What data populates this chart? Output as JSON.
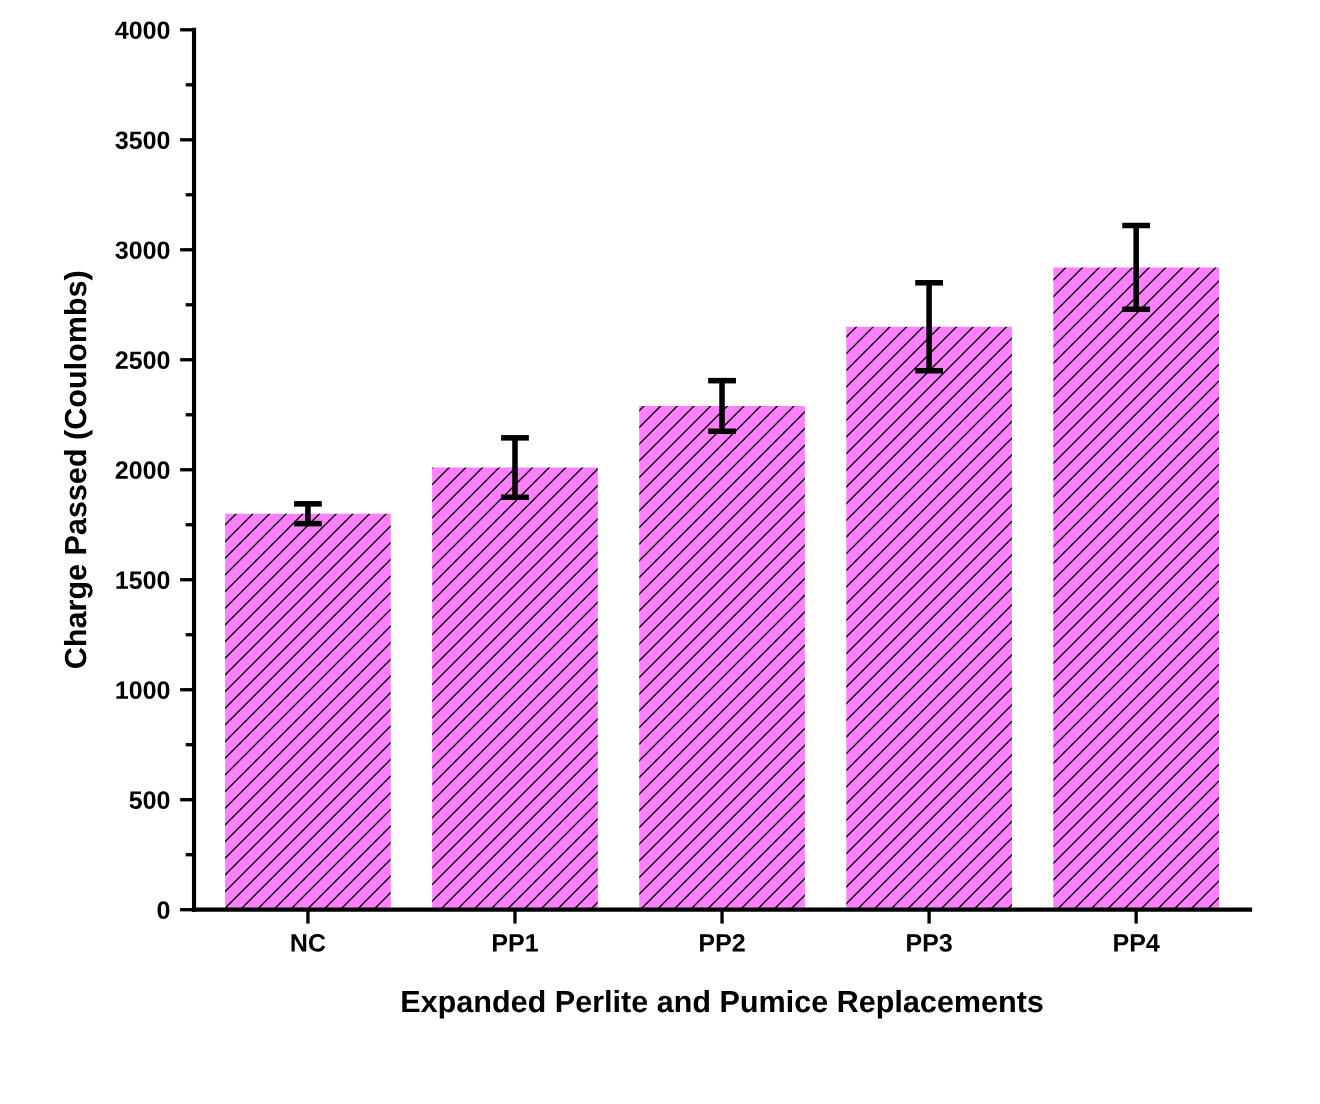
{
  "chart_data": {
    "type": "bar",
    "xlabel": "Expanded Perlite and Pumice Replacements",
    "ylabel": "Charge Passed (Coulombs)",
    "categories": [
      "NC",
      "PP1",
      "PP2",
      "PP3",
      "PP4"
    ],
    "values": [
      1800,
      2010,
      2290,
      2650,
      2920
    ],
    "errors": [
      45,
      135,
      115,
      200,
      190
    ],
    "color": "#ff80ff",
    "ylim": [
      0,
      4000
    ],
    "yticks": [
      0,
      500,
      1000,
      1500,
      2000,
      2500,
      3000,
      3500,
      4000
    ],
    "grid": false,
    "legend": false
  }
}
